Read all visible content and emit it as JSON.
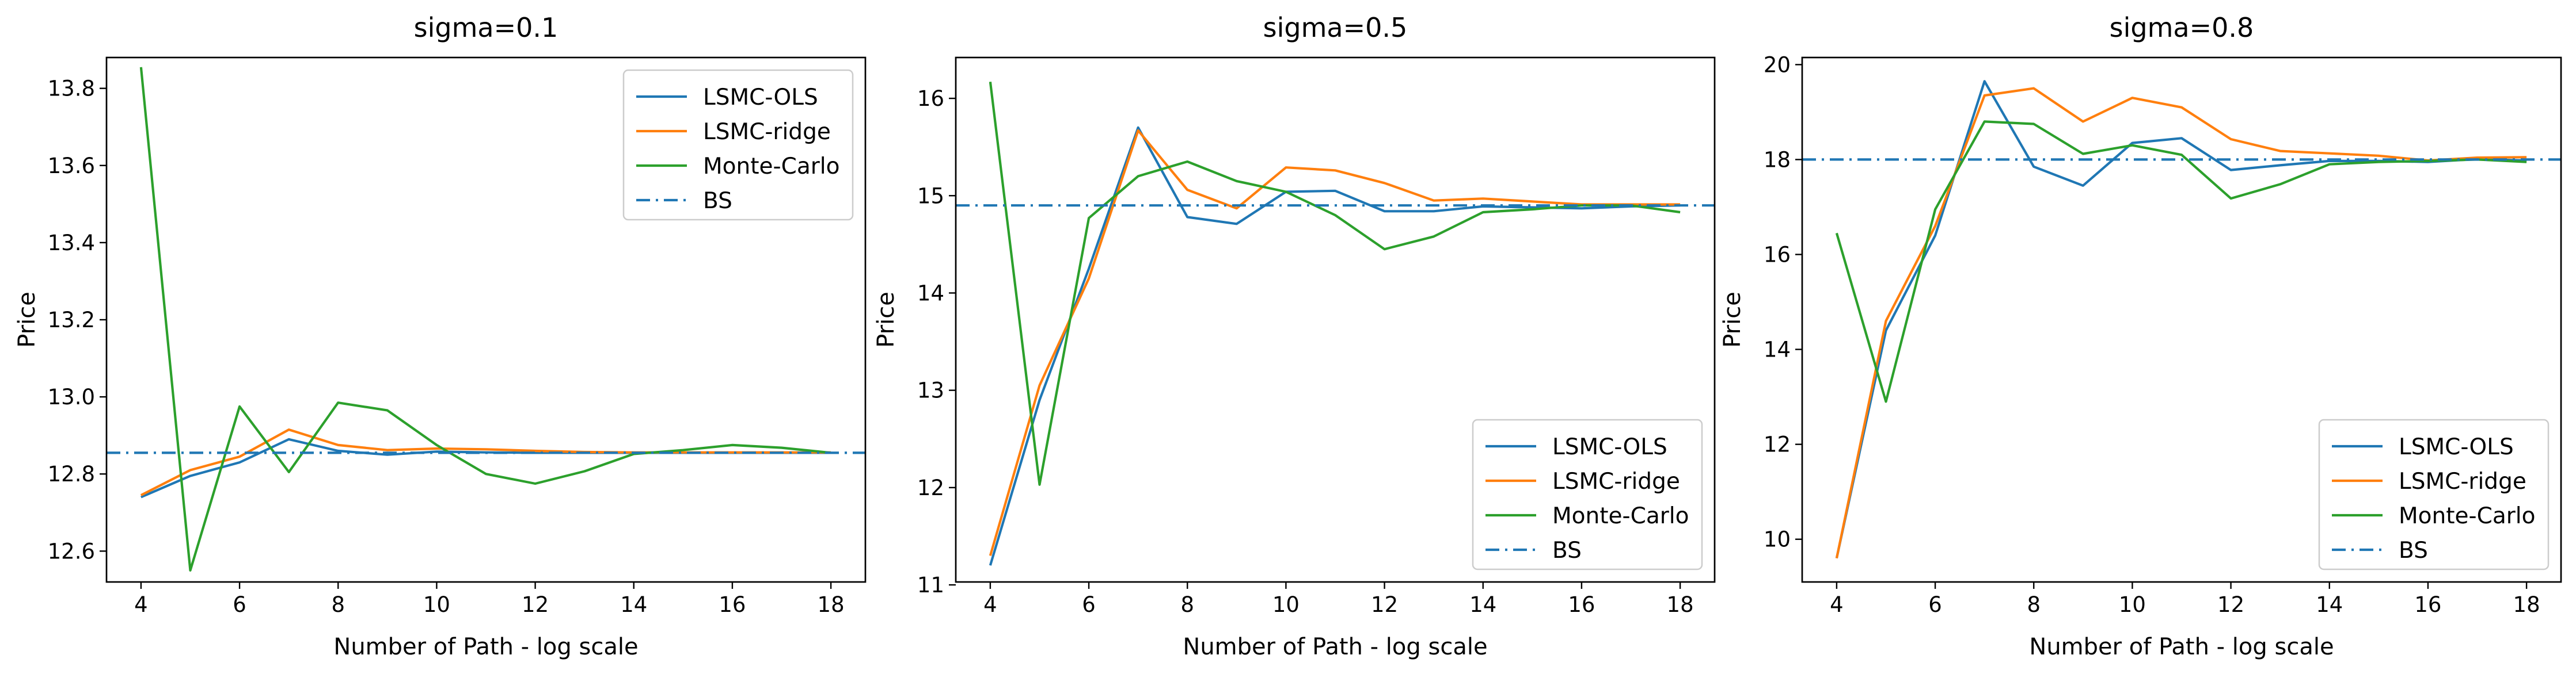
{
  "chart_data": [
    {
      "type": "line",
      "title": "sigma=0.1",
      "xlabel": "Number of Path - log scale",
      "ylabel": "Price",
      "xlim": [
        3.3,
        18.7
      ],
      "ylim": [
        12.52,
        13.88
      ],
      "xticks": [
        4,
        6,
        8,
        10,
        12,
        14,
        16,
        18
      ],
      "xtick_labels": [
        "4",
        "6",
        "8",
        "10",
        "12",
        "14",
        "16",
        "18"
      ],
      "yticks": [
        12.6,
        12.8,
        13.0,
        13.2,
        13.4,
        13.6,
        13.8
      ],
      "ytick_labels": [
        "12.6",
        "12.8",
        "13.0",
        "13.2",
        "13.4",
        "13.6",
        "13.8"
      ],
      "legend_position": "upper right",
      "x": [
        4,
        5,
        6,
        7,
        8,
        9,
        10,
        11,
        12,
        13,
        14,
        15,
        16,
        17,
        18
      ],
      "series": [
        {
          "name": "LSMC-OLS",
          "color": "#1f77b4",
          "style": "solid",
          "values": [
            12.74,
            12.795,
            12.83,
            12.89,
            12.86,
            12.85,
            12.858,
            12.856,
            12.855,
            12.855,
            12.855,
            12.855,
            12.855,
            12.855,
            12.855
          ]
        },
        {
          "name": "LSMC-ridge",
          "color": "#ff7f0e",
          "style": "solid",
          "values": [
            12.745,
            12.81,
            12.845,
            12.915,
            12.875,
            12.862,
            12.866,
            12.864,
            12.86,
            12.857,
            12.856,
            12.856,
            12.856,
            12.856,
            12.856
          ]
        },
        {
          "name": "Monte-Carlo",
          "color": "#2ca02c",
          "style": "solid",
          "values": [
            13.855,
            12.55,
            12.975,
            12.805,
            12.985,
            12.965,
            12.875,
            12.8,
            12.775,
            12.807,
            12.852,
            12.862,
            12.875,
            12.868,
            12.855
          ]
        },
        {
          "name": "BS",
          "color": "#1f77b4",
          "style": "dashdot",
          "constant": 12.855
        }
      ]
    },
    {
      "type": "line",
      "title": "sigma=0.5",
      "xlabel": "Number of Path - log scale",
      "ylabel": "Price",
      "xlim": [
        3.3,
        18.7
      ],
      "ylim": [
        11.03,
        16.42
      ],
      "xticks": [
        4,
        6,
        8,
        10,
        12,
        14,
        16,
        18
      ],
      "xtick_labels": [
        "4",
        "6",
        "8",
        "10",
        "12",
        "14",
        "16",
        "18"
      ],
      "yticks": [
        11,
        12,
        13,
        14,
        15,
        16
      ],
      "ytick_labels": [
        "11",
        "12",
        "13",
        "14",
        "15",
        "16"
      ],
      "legend_position": "lower right",
      "x": [
        4,
        5,
        6,
        7,
        8,
        9,
        10,
        11,
        12,
        13,
        14,
        15,
        16,
        17,
        18
      ],
      "series": [
        {
          "name": "LSMC-OLS",
          "color": "#1f77b4",
          "style": "solid",
          "values": [
            11.2,
            12.9,
            14.25,
            15.7,
            14.78,
            14.71,
            15.04,
            15.05,
            14.84,
            14.84,
            14.89,
            14.88,
            14.87,
            14.89,
            14.9
          ]
        },
        {
          "name": "LSMC-ridge",
          "color": "#ff7f0e",
          "style": "solid",
          "values": [
            11.3,
            13.05,
            14.15,
            15.67,
            15.06,
            14.87,
            15.29,
            15.26,
            15.13,
            14.95,
            14.97,
            14.94,
            14.91,
            14.91,
            14.91
          ]
        },
        {
          "name": "Monte-Carlo",
          "color": "#2ca02c",
          "style": "solid",
          "values": [
            16.17,
            12.03,
            14.77,
            15.2,
            15.35,
            15.15,
            15.04,
            14.8,
            14.45,
            14.58,
            14.83,
            14.86,
            14.9,
            14.9,
            14.83
          ]
        },
        {
          "name": "BS",
          "color": "#1f77b4",
          "style": "dashdot",
          "constant": 14.9
        }
      ]
    },
    {
      "type": "line",
      "title": "sigma=0.8",
      "xlabel": "Number of Path - log scale",
      "ylabel": "Price",
      "xlim": [
        3.3,
        18.7
      ],
      "ylim": [
        9.1,
        20.15
      ],
      "xticks": [
        4,
        6,
        8,
        10,
        12,
        14,
        16,
        18
      ],
      "xtick_labels": [
        "4",
        "6",
        "8",
        "10",
        "12",
        "14",
        "16",
        "18"
      ],
      "yticks": [
        10,
        12,
        14,
        16,
        18,
        20
      ],
      "ytick_labels": [
        "10",
        "12",
        "14",
        "16",
        "18",
        "20"
      ],
      "legend_position": "lower right",
      "x": [
        4,
        5,
        6,
        7,
        8,
        9,
        10,
        11,
        12,
        13,
        14,
        15,
        16,
        17,
        18
      ],
      "series": [
        {
          "name": "LSMC-OLS",
          "color": "#1f77b4",
          "style": "solid",
          "values": [
            9.6,
            14.4,
            16.4,
            19.65,
            17.85,
            17.45,
            18.35,
            18.45,
            17.78,
            17.88,
            17.97,
            17.97,
            17.95,
            18.01,
            17.98
          ]
        },
        {
          "name": "LSMC-ridge",
          "color": "#ff7f0e",
          "style": "solid",
          "values": [
            9.6,
            14.6,
            16.6,
            19.35,
            19.5,
            18.8,
            19.3,
            19.1,
            18.43,
            18.18,
            18.13,
            18.08,
            17.98,
            18.04,
            18.05
          ]
        },
        {
          "name": "Monte-Carlo",
          "color": "#2ca02c",
          "style": "solid",
          "values": [
            16.45,
            12.9,
            16.95,
            18.8,
            18.75,
            18.12,
            18.3,
            18.1,
            17.18,
            17.48,
            17.9,
            17.95,
            17.97,
            18.0,
            17.95
          ]
        },
        {
          "name": "BS",
          "color": "#1f77b4",
          "style": "dashdot",
          "constant": 18.0
        }
      ]
    }
  ]
}
